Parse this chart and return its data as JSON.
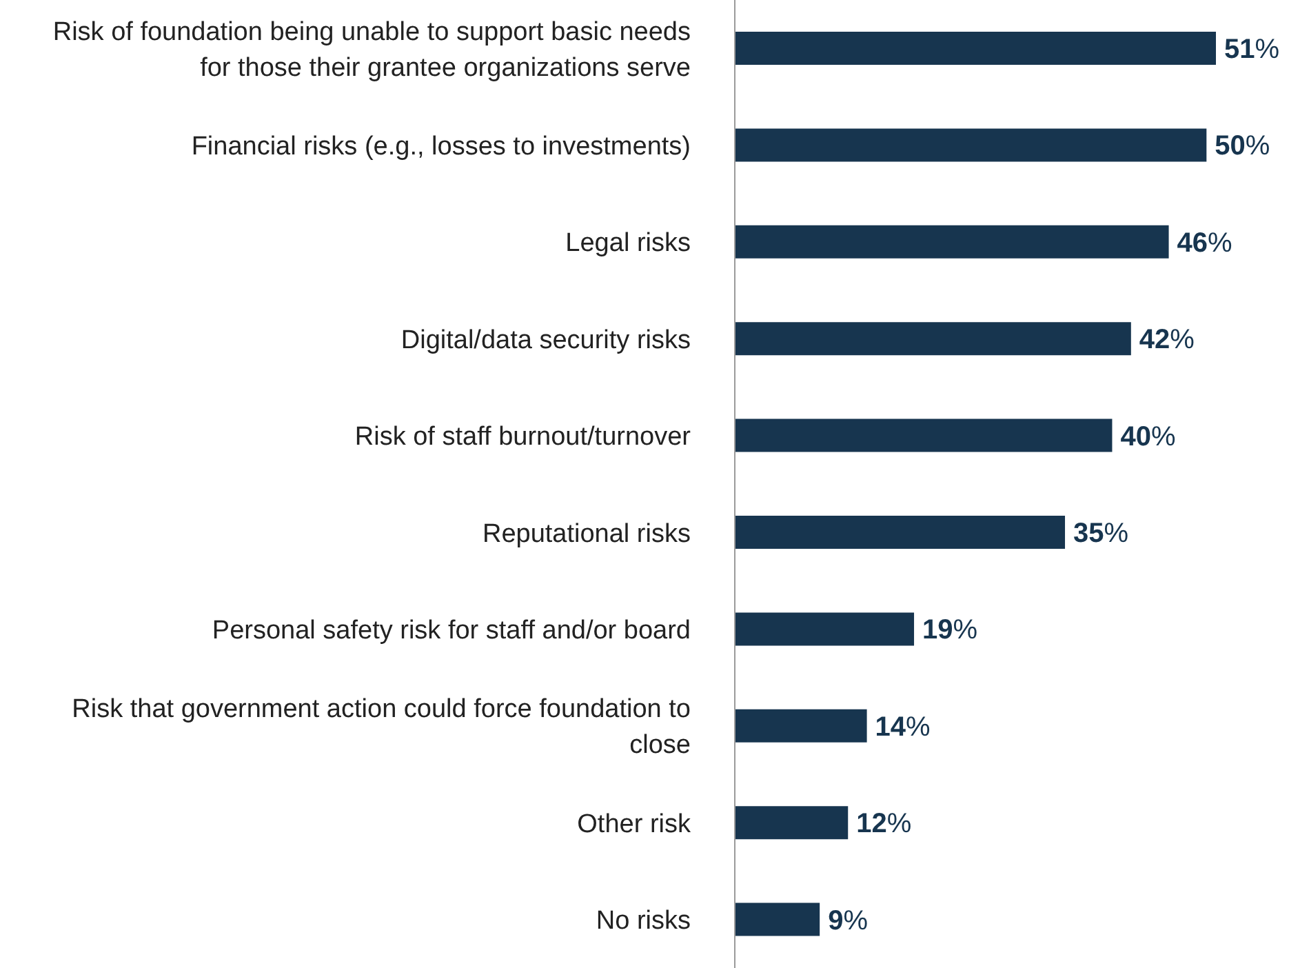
{
  "chart_data": {
    "type": "bar",
    "orientation": "horizontal",
    "categories": [
      "Risk of foundation being unable to support basic needs for those their grantee organizations serve",
      "Financial risks (e.g., losses to investments)",
      "Legal risks",
      "Digital/data security risks",
      "Risk of staff burnout/turnover",
      "Reputational risks",
      "Personal safety risk for staff and/or board",
      "Risk that government action could force foundation to close",
      "Other risk",
      "No risks"
    ],
    "values": [
      51,
      50,
      46,
      42,
      40,
      35,
      19,
      14,
      12,
      9
    ],
    "value_labels": [
      "51%",
      "50%",
      "46%",
      "42%",
      "40%",
      "35%",
      "19%",
      "14%",
      "12%",
      "9%"
    ],
    "color": "#17354f"
  }
}
